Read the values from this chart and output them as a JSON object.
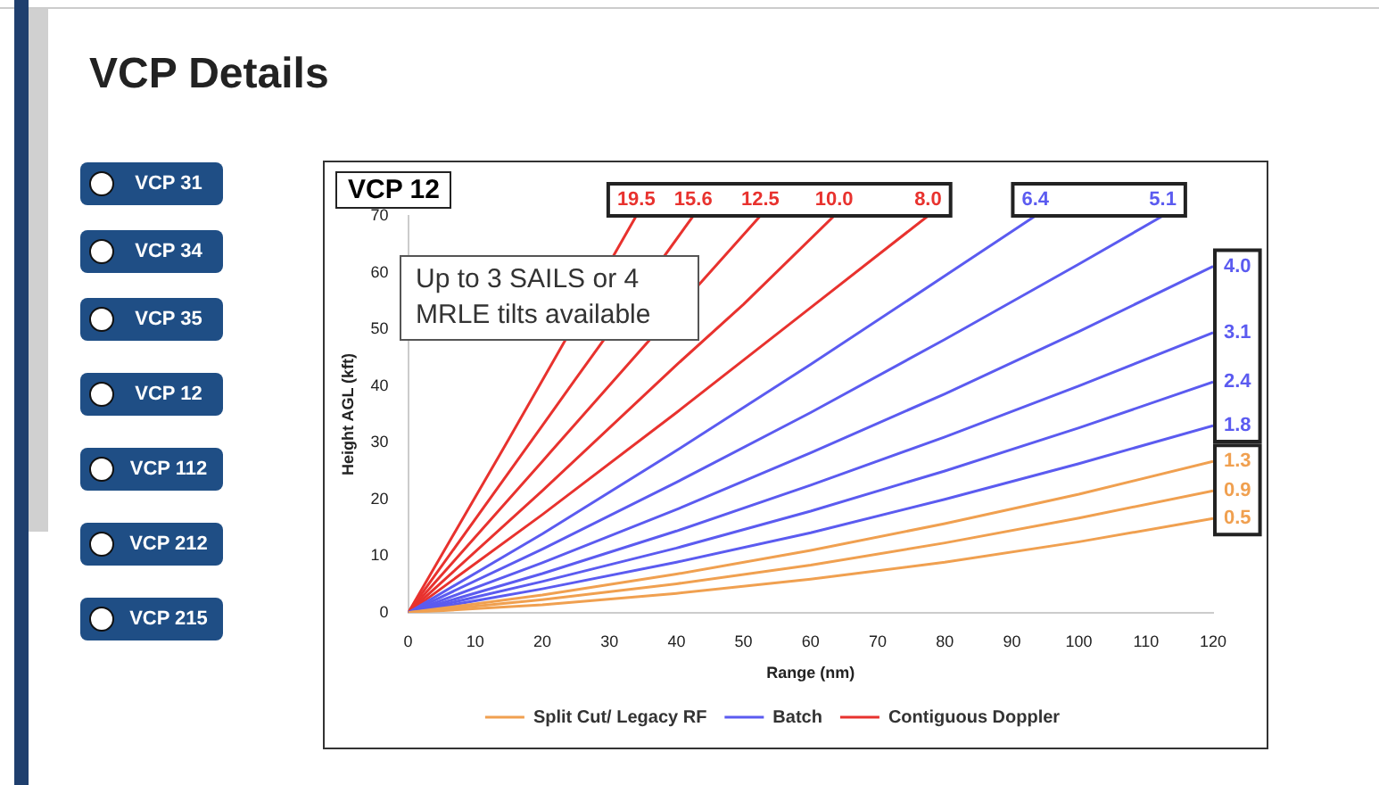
{
  "chart_data": {
    "type": "line",
    "title": "VCP Details",
    "subtitle": "VCP 12",
    "xlabel": "Range (nm)",
    "ylabel": "Height AGL (kft)",
    "annotations": [
      "VCP 31",
      "VCP 34",
      "VCP 35",
      "VCP 12",
      "VCP 112",
      "VCP 212",
      "VCP 215",
      "Up to 3 SAILS or 4 MRLE tilts available",
      {
        "text": "19.5",
        "x": 34,
        "y": 70
      },
      {
        "text": "15.6",
        "x": 42.5,
        "y": 70
      },
      {
        "text": "12.5",
        "x": 52.5,
        "y": 70
      },
      {
        "text": "10.0",
        "x": 63.5,
        "y": 70
      },
      {
        "text": "8.0",
        "x": 77.5,
        "y": 70
      },
      {
        "text": "6.4",
        "x": 93.5,
        "y": 70
      },
      {
        "text": "5.1",
        "x": 112.5,
        "y": 70
      },
      {
        "text": "4.0",
        "x": 120,
        "y": 61.1
      },
      {
        "text": "3.1",
        "x": 120,
        "y": 49.4
      },
      {
        "text": "2.4",
        "x": 120,
        "y": 40.7
      },
      {
        "text": "1.8",
        "x": 120,
        "y": 33.0
      },
      {
        "text": "1.3",
        "x": 120,
        "y": 26.7
      },
      {
        "text": "0.9",
        "x": 120,
        "y": 21.5
      },
      {
        "text": "0.5",
        "x": 120,
        "y": 16.6
      }
    ],
    "xlim": [
      0,
      120
    ],
    "ylim": [
      0,
      70
    ],
    "xticks": [
      0,
      10,
      20,
      30,
      40,
      50,
      60,
      70,
      80,
      90,
      100,
      110,
      120
    ],
    "yticks": [
      0,
      10,
      20,
      30,
      40,
      50,
      60,
      70
    ],
    "grid": false,
    "legend": "bottom",
    "marker": "none",
    "line_style": "solid",
    "series": [
      {
        "name": "Split Cut/ Legacy RF",
        "color": "#f0a050",
        "x": [
          0,
          20,
          40,
          60,
          80,
          100,
          120
        ],
        "values": [
          0,
          1.4,
          3.4,
          5.9,
          8.9,
          12.5,
          16.6
        ]
      },
      {
        "color": "#f0a050",
        "x": [
          0,
          20,
          40,
          60,
          80,
          100,
          120
        ],
        "values": [
          0,
          2.3,
          5.1,
          8.4,
          12.3,
          16.7,
          21.5
        ]
      },
      {
        "color": "#f0a050",
        "x": [
          0,
          20,
          40,
          60,
          80,
          100,
          120
        ],
        "values": [
          0,
          3.1,
          6.8,
          11.0,
          15.7,
          20.9,
          26.7
        ]
      },
      {
        "name": "Batch",
        "color": "#5b5bf0",
        "x": [
          0,
          20,
          40,
          60,
          80,
          100,
          120
        ],
        "values": [
          0,
          4.2,
          8.9,
          14.1,
          20.0,
          26.3,
          33.0
        ]
      },
      {
        "color": "#5b5bf0",
        "x": [
          0,
          20,
          40,
          60,
          80,
          100,
          120
        ],
        "values": [
          0,
          5.5,
          11.4,
          17.9,
          25.0,
          32.6,
          40.7
        ]
      },
      {
        "color": "#5b5bf0",
        "x": [
          0,
          20,
          40,
          60,
          80,
          100,
          120
        ],
        "values": [
          0,
          6.9,
          14.4,
          22.5,
          31.0,
          40.0,
          49.4
        ]
      },
      {
        "color": "#5b5bf0",
        "x": [
          0,
          20,
          40,
          60,
          80,
          100,
          120
        ],
        "values": [
          0,
          8.8,
          18.2,
          28.2,
          38.6,
          49.6,
          61.1
        ]
      },
      {
        "color": "#5b5bf0",
        "x": [
          0,
          20,
          40,
          60,
          80,
          100,
          112.5
        ],
        "values": [
          0,
          11.2,
          23.0,
          35.3,
          48.2,
          61.5,
          70
        ]
      },
      {
        "color": "#5b5bf0",
        "x": [
          0,
          20,
          40,
          60,
          80,
          93.5
        ],
        "values": [
          0,
          13.9,
          28.6,
          43.8,
          59.4,
          70
        ]
      },
      {
        "name": "Contiguous Doppler",
        "color": "#e8322e",
        "x": [
          0,
          20,
          40,
          60,
          77.5
        ],
        "values": [
          0,
          17.3,
          35.3,
          53.8,
          70
        ]
      },
      {
        "color": "#e8322e",
        "x": [
          0,
          20,
          40,
          50,
          63.5
        ],
        "values": [
          0,
          21.5,
          43.7,
          54.4,
          70
        ]
      },
      {
        "color": "#e8322e",
        "x": [
          0,
          20,
          35,
          52.5
        ],
        "values": [
          0,
          26.7,
          46.8,
          70
        ]
      },
      {
        "color": "#e8322e",
        "x": [
          0,
          20,
          25,
          42.5
        ],
        "values": [
          0,
          33.0,
          41.3,
          70
        ]
      },
      {
        "color": "#e8322e",
        "x": [
          0,
          15,
          34
        ],
        "values": [
          0,
          30.6,
          70
        ]
      }
    ]
  }
}
